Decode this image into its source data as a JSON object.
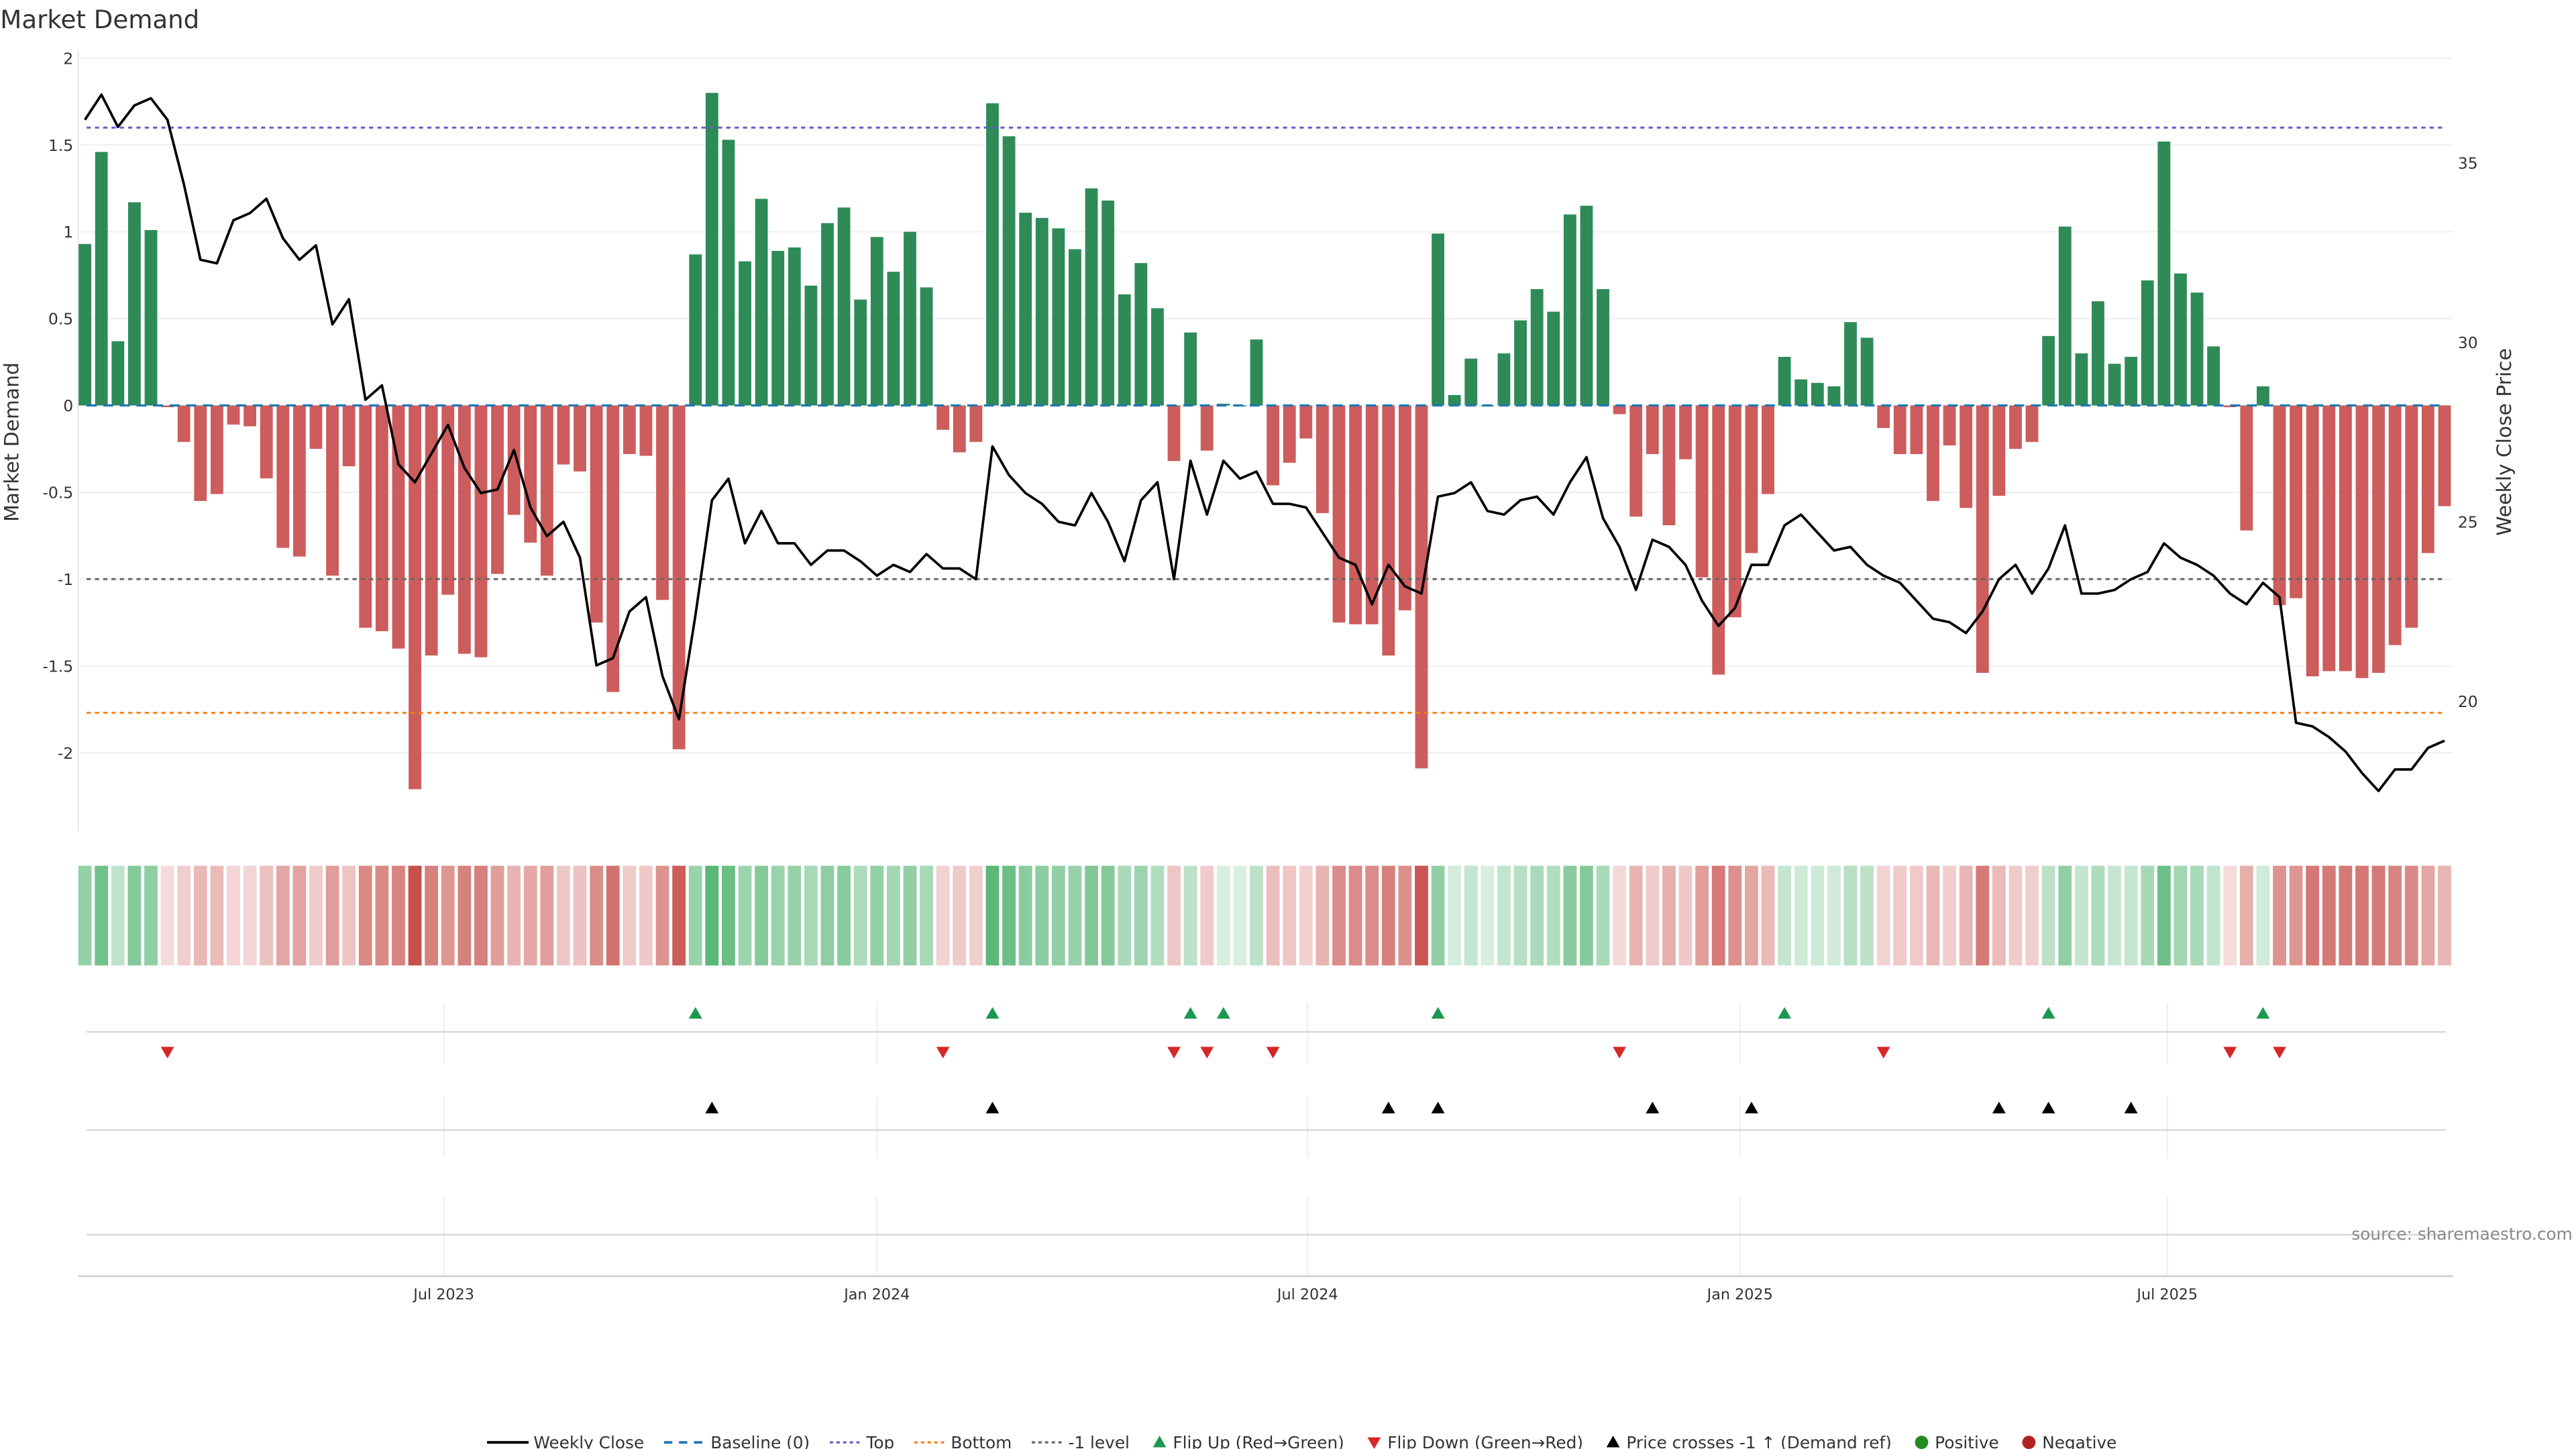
{
  "title": "Market Demand",
  "source": "source: sharemaestro.com",
  "chart_data": {
    "type": "bar",
    "title": "Market Demand",
    "ylabel": "Market Demand",
    "y2label": "Weekly Close Price",
    "ylim": [
      -2.4,
      2
    ],
    "y2lim": [
      17.5,
      37.8
    ],
    "yticks": [
      "2",
      "1.5",
      "1",
      "0.5",
      "0",
      "-0.5",
      "-1",
      "-1.5",
      "-2"
    ],
    "ytick_values": [
      2,
      1.5,
      1,
      0.5,
      0,
      -0.5,
      -1,
      -1.5,
      -2
    ],
    "y2ticks": [
      "35",
      "30",
      "25",
      "20"
    ],
    "y2tick_values": [
      35,
      30,
      25,
      20
    ],
    "xticks": [
      {
        "label": "Jul 2023",
        "week_index": 21.75
      },
      {
        "label": "Jan 2024",
        "week_index": 48.0
      },
      {
        "label": "Jul 2024",
        "week_index": 74.1
      },
      {
        "label": "Jan 2025",
        "week_index": 100.3
      },
      {
        "label": "Jul 2025",
        "week_index": 126.2
      }
    ],
    "reference_lines": {
      "baseline": 0,
      "top": 1.6,
      "bottom": -1.77,
      "minus_one": -1
    },
    "demand": [
      0.93,
      1.46,
      0.37,
      1.17,
      1.01,
      -0.01,
      -0.21,
      -0.55,
      -0.51,
      -0.11,
      -0.12,
      -0.42,
      -0.82,
      -0.87,
      -0.25,
      -0.98,
      -0.35,
      -1.28,
      -1.3,
      -1.4,
      -2.21,
      -1.44,
      -1.09,
      -1.43,
      -1.45,
      -0.97,
      -0.63,
      -0.79,
      -0.98,
      -0.34,
      -0.38,
      -1.25,
      -1.65,
      -0.28,
      -0.29,
      -1.12,
      -1.98,
      0.87,
      1.8,
      1.53,
      0.83,
      1.19,
      0.89,
      0.91,
      0.69,
      1.05,
      1.14,
      0.61,
      0.97,
      0.77,
      1.0,
      0.68,
      -0.14,
      -0.27,
      -0.21,
      1.74,
      1.55,
      1.11,
      1.08,
      1.02,
      0.9,
      1.25,
      1.18,
      0.64,
      0.82,
      0.56,
      -0.32,
      0.42,
      -0.26,
      0.01,
      0.0,
      0.38,
      -0.46,
      -0.33,
      -0.19,
      -0.62,
      -1.25,
      -1.26,
      -1.26,
      -1.44,
      -1.18,
      -2.09,
      0.99,
      0.06,
      0.27,
      0.0,
      0.3,
      0.49,
      0.67,
      0.54,
      1.1,
      1.15,
      0.67,
      -0.05,
      -0.64,
      -0.28,
      -0.69,
      -0.31,
      -0.99,
      -1.55,
      -1.22,
      -0.85,
      -0.51,
      0.28,
      0.15,
      0.13,
      0.11,
      0.48,
      0.39,
      -0.13,
      -0.28,
      -0.28,
      -0.55,
      -0.23,
      -0.59,
      -1.54,
      -0.52,
      -0.25,
      -0.21,
      0.4,
      1.03,
      0.3,
      0.6,
      0.24,
      0.28,
      0.72,
      1.52,
      0.76,
      0.65,
      0.34,
      -0.01,
      -0.72,
      0.11,
      -1.15,
      -1.11,
      -1.56,
      -1.53,
      -1.53,
      -1.57,
      -1.54,
      -1.38,
      -1.28,
      -0.85,
      -0.58
    ],
    "weekly_close": [
      36.2,
      36.9,
      36.0,
      36.6,
      36.8,
      36.2,
      34.4,
      32.3,
      32.2,
      33.4,
      33.6,
      34.0,
      32.9,
      32.3,
      32.7,
      30.5,
      31.2,
      28.4,
      28.8,
      26.6,
      26.1,
      26.9,
      27.7,
      26.5,
      25.8,
      25.9,
      27.0,
      25.4,
      24.6,
      25.0,
      24.0,
      21.0,
      21.2,
      22.5,
      22.9,
      20.7,
      19.5,
      22.4,
      25.6,
      26.2,
      24.4,
      25.3,
      24.4,
      24.4,
      23.8,
      24.2,
      24.2,
      23.9,
      23.5,
      23.8,
      23.6,
      24.1,
      23.7,
      23.7,
      23.4,
      27.1,
      26.3,
      25.8,
      25.5,
      25.0,
      24.9,
      25.8,
      25.0,
      23.9,
      25.6,
      26.1,
      23.4,
      26.7,
      25.2,
      26.7,
      26.2,
      26.4,
      25.5,
      25.5,
      25.4,
      24.7,
      24.0,
      23.8,
      22.7,
      23.8,
      23.2,
      23.0,
      25.7,
      25.8,
      26.1,
      25.3,
      25.2,
      25.6,
      25.7,
      25.2,
      26.1,
      26.8,
      25.1,
      24.3,
      23.1,
      24.5,
      24.3,
      23.8,
      22.8,
      22.1,
      22.6,
      23.8,
      23.8,
      24.9,
      25.2,
      24.7,
      24.2,
      24.3,
      23.8,
      23.5,
      23.3,
      22.8,
      22.3,
      22.2,
      21.9,
      22.5,
      23.4,
      23.8,
      23.0,
      23.7,
      24.9,
      23.0,
      23.0,
      23.1,
      23.4,
      23.6,
      24.4,
      24.0,
      23.8,
      23.5,
      23.0,
      22.7,
      23.3,
      22.9,
      19.4,
      19.3,
      19.0,
      18.6,
      18.0,
      17.5,
      18.1,
      18.1,
      18.7,
      18.9
    ],
    "flip_up_indices": [
      37,
      55,
      67,
      69,
      82,
      103,
      119,
      132
    ],
    "flip_down_indices": [
      5,
      52,
      66,
      68,
      72,
      93,
      109,
      130,
      133
    ],
    "price_cross_indices": [
      38,
      55,
      79,
      82,
      95,
      101,
      116,
      119,
      124
    ],
    "colors": {
      "positive": "#2e8b57",
      "negative": "#cd5c5c",
      "baseline": "#1f77b4",
      "top": "#6a5acd",
      "bottom": "#ff7f0e",
      "minus_one": "#666666",
      "flip_up": "#1a9850",
      "flip_down": "#d62728",
      "cross": "#000000"
    },
    "legend": [
      "Weekly Close",
      "Baseline (0)",
      "Top",
      "Bottom",
      "-1 level",
      "Flip Up (Red→Green)",
      "Flip Down (Green→Red)",
      "Price crosses -1 ↑ (Demand ref)",
      "Positive",
      "Negative"
    ],
    "legend_placement": "bottom"
  }
}
